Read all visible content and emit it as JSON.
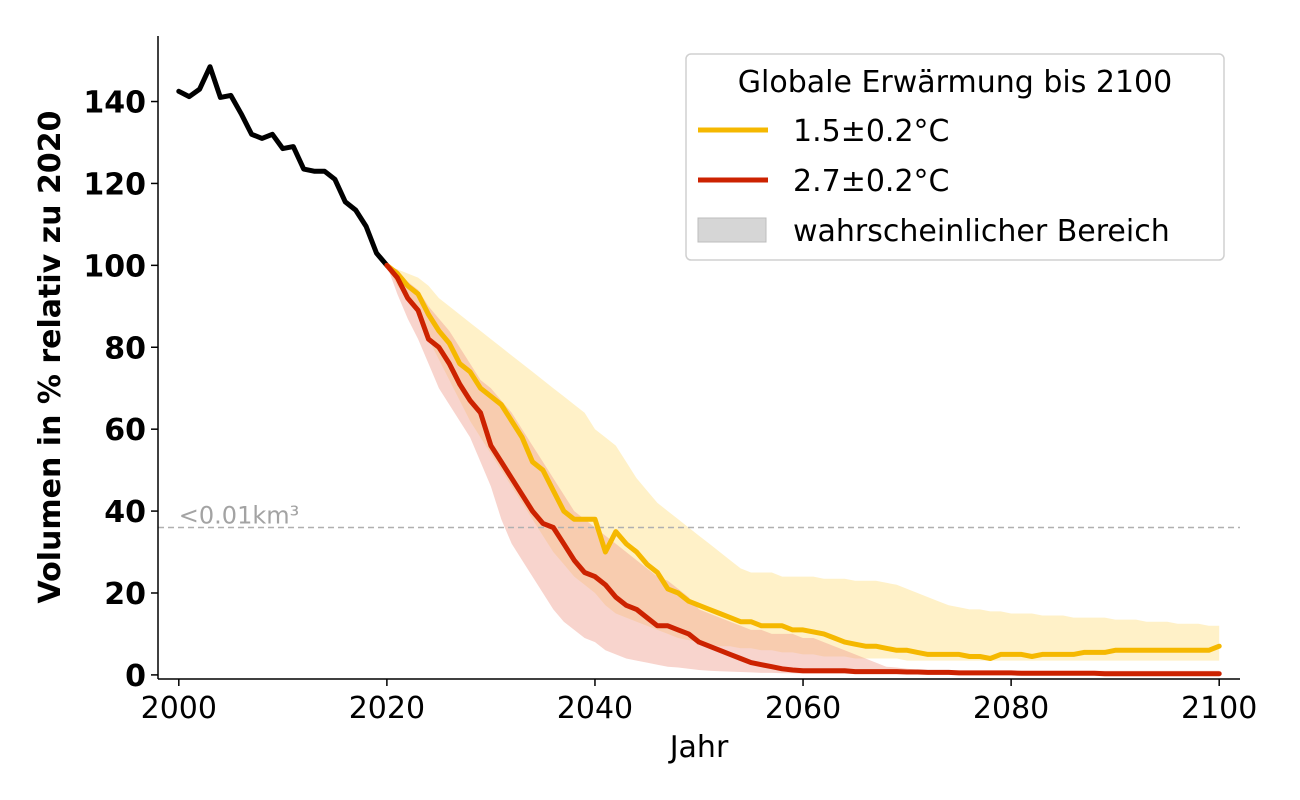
{
  "chart_data": {
    "type": "line",
    "xlabel": "Jahr",
    "ylabel": "Volumen in % relativ zu 2020",
    "xlim": [
      1998,
      2102
    ],
    "ylim": [
      -1,
      156
    ],
    "xticks": [
      2000,
      2020,
      2040,
      2060,
      2080,
      2100
    ],
    "yticks": [
      0,
      20,
      40,
      60,
      80,
      100,
      120,
      140
    ],
    "grid": false,
    "legend": {
      "title": "Globale Erwärmung bis 2100",
      "placement": "top-right",
      "entries": [
        "1.5±0.2°C",
        "2.7±0.2°C",
        "wahrscheinlicher Bereich"
      ]
    },
    "threshold": {
      "y": 36,
      "label": "<0.01km³",
      "color": "#b0b0b0"
    },
    "series": [
      {
        "name": "historical",
        "color": "#000000",
        "x": [
          2000,
          2001,
          2002,
          2003,
          2004,
          2005,
          2006,
          2007,
          2008,
          2009,
          2010,
          2011,
          2012,
          2013,
          2014,
          2015,
          2016,
          2017,
          2018,
          2019,
          2020
        ],
        "y": [
          142.5,
          141.2,
          143,
          148.5,
          141,
          141.5,
          137,
          132,
          131,
          132,
          128.5,
          129,
          123.5,
          123,
          123,
          121,
          115.5,
          113.5,
          109.5,
          103,
          100
        ]
      },
      {
        "name": "1.5±0.2°C",
        "color": "#f5b800",
        "band_color": "#ffebb0",
        "x": [
          2020,
          2021,
          2022,
          2023,
          2024,
          2025,
          2026,
          2027,
          2028,
          2029,
          2030,
          2031,
          2032,
          2033,
          2034,
          2035,
          2036,
          2037,
          2038,
          2039,
          2040,
          2041,
          2042,
          2043,
          2044,
          2045,
          2046,
          2047,
          2048,
          2049,
          2050,
          2051,
          2052,
          2053,
          2054,
          2055,
          2056,
          2057,
          2058,
          2059,
          2060,
          2061,
          2062,
          2063,
          2064,
          2065,
          2066,
          2067,
          2068,
          2069,
          2070,
          2071,
          2072,
          2073,
          2074,
          2075,
          2076,
          2077,
          2078,
          2079,
          2080,
          2081,
          2082,
          2083,
          2084,
          2085,
          2086,
          2087,
          2088,
          2089,
          2090,
          2091,
          2092,
          2093,
          2094,
          2095,
          2096,
          2097,
          2098,
          2099,
          2100
        ],
        "y": [
          100,
          98,
          95,
          93,
          88,
          84,
          81,
          76,
          74,
          70,
          68,
          66,
          62,
          58,
          52,
          50,
          45,
          40,
          38,
          38,
          38,
          30,
          35,
          32,
          30,
          27,
          25,
          21,
          20,
          18,
          17,
          16,
          15,
          14,
          13,
          13,
          12,
          12,
          12,
          11,
          11,
          10.5,
          10,
          9,
          8,
          7.5,
          7,
          7,
          6.5,
          6,
          6,
          5.5,
          5,
          5,
          5,
          5,
          4.5,
          4.5,
          4,
          5,
          5,
          5,
          4.5,
          5,
          5,
          5,
          5,
          5.5,
          5.5,
          5.5,
          6,
          6,
          6,
          6,
          6,
          6,
          6,
          6,
          6,
          6,
          7
        ],
        "lower": [
          100,
          95,
          92,
          88,
          82,
          77,
          72,
          67,
          62,
          58,
          54,
          50,
          46,
          42,
          38,
          34,
          30,
          27,
          24,
          22,
          20,
          17,
          15,
          14,
          13,
          12,
          11,
          10,
          9,
          8.5,
          8,
          7.5,
          7,
          7,
          6.5,
          6.5,
          6,
          6,
          5.5,
          5.5,
          5,
          5,
          4.5,
          4.5,
          4.5,
          4,
          4,
          4,
          4,
          4,
          3.5,
          3.5,
          3.5,
          3.5,
          3.5,
          3.5,
          3.5,
          3.5,
          3.5,
          3.5,
          3.5,
          3.5,
          3.5,
          3.5,
          3.5,
          3.5,
          3.5,
          3.5,
          3.5,
          3.5,
          3.5,
          3.5,
          3.5,
          3.5,
          3.5,
          3.5,
          3.5,
          3.5,
          3.5,
          3.5,
          3.5
        ],
        "upper": [
          100,
          99,
          98,
          97,
          95,
          92,
          90,
          88,
          86,
          84,
          82,
          80,
          78,
          76,
          74,
          72,
          70,
          68,
          66,
          64,
          60,
          58,
          56,
          52,
          48,
          45,
          42,
          40,
          38,
          36,
          34,
          32,
          30,
          28,
          26,
          25,
          25,
          25,
          24,
          24,
          24,
          24,
          23.5,
          23.5,
          23.5,
          23,
          23,
          23,
          22.5,
          22,
          21,
          20,
          19,
          18,
          17,
          16.5,
          16,
          16,
          15.5,
          15.5,
          15,
          15,
          15,
          14.5,
          14.5,
          14.5,
          14,
          14,
          14,
          14,
          13.5,
          13.5,
          13.5,
          13,
          13,
          13,
          12.5,
          12.5,
          12.5,
          12,
          12
        ]
      },
      {
        "name": "2.7±0.2°C",
        "color": "#cc2200",
        "band_color": "#f0a090",
        "x": [
          2020,
          2021,
          2022,
          2023,
          2024,
          2025,
          2026,
          2027,
          2028,
          2029,
          2030,
          2031,
          2032,
          2033,
          2034,
          2035,
          2036,
          2037,
          2038,
          2039,
          2040,
          2041,
          2042,
          2043,
          2044,
          2045,
          2046,
          2047,
          2048,
          2049,
          2050,
          2051,
          2052,
          2053,
          2054,
          2055,
          2056,
          2057,
          2058,
          2059,
          2060,
          2061,
          2062,
          2063,
          2064,
          2065,
          2066,
          2067,
          2068,
          2069,
          2070,
          2071,
          2072,
          2073,
          2074,
          2075,
          2076,
          2077,
          2078,
          2079,
          2080,
          2081,
          2082,
          2083,
          2084,
          2085,
          2086,
          2087,
          2088,
          2089,
          2090,
          2091,
          2092,
          2093,
          2094,
          2095,
          2096,
          2097,
          2098,
          2099,
          2100
        ],
        "y": [
          100,
          97,
          92,
          89,
          82,
          80,
          76,
          71,
          67,
          64,
          56,
          52,
          48,
          44,
          40,
          37,
          36,
          32,
          28,
          25,
          24,
          22,
          19,
          17,
          16,
          14,
          12,
          12,
          11,
          10,
          8,
          7,
          6,
          5,
          4,
          3,
          2.5,
          2,
          1.5,
          1.2,
          1,
          1,
          1,
          1,
          1,
          0.8,
          0.8,
          0.8,
          0.8,
          0.8,
          0.7,
          0.7,
          0.6,
          0.6,
          0.6,
          0.5,
          0.5,
          0.5,
          0.5,
          0.5,
          0.5,
          0.4,
          0.4,
          0.4,
          0.4,
          0.4,
          0.4,
          0.4,
          0.4,
          0.3,
          0.3,
          0.3,
          0.3,
          0.3,
          0.3,
          0.3,
          0.3,
          0.3,
          0.3,
          0.3,
          0.3
        ],
        "lower": [
          100,
          93,
          87,
          82,
          76,
          70,
          66,
          62,
          58,
          52,
          46,
          38,
          32,
          28,
          24,
          20,
          16,
          13,
          11,
          9,
          8,
          6,
          5,
          4,
          3.5,
          3,
          2.5,
          2,
          1.8,
          1.5,
          1.2,
          1,
          0.9,
          0.8,
          0.7,
          0.6,
          0.5,
          0.5,
          0.4,
          0.4,
          0.3,
          0.3,
          0.3,
          0.3,
          0.3,
          0.2,
          0.2,
          0.2,
          0.2,
          0.2,
          0.2,
          0.2,
          0.2,
          0.2,
          0.2,
          0.2,
          0.2,
          0.2,
          0.2,
          0.2,
          0.2,
          0.2,
          0.2,
          0.2,
          0.2,
          0.2,
          0.2,
          0.2,
          0.2,
          0.2,
          0.2,
          0.2,
          0.2,
          0.2,
          0.2,
          0.2,
          0.2,
          0.2,
          0.2,
          0.2,
          0.2
        ],
        "upper": [
          100,
          99,
          96,
          94,
          90,
          87,
          84,
          80,
          76,
          72,
          70,
          67,
          64,
          60,
          56,
          52,
          48,
          44,
          40,
          38,
          36,
          34,
          32,
          30,
          28,
          26,
          24,
          23,
          21,
          19,
          16,
          15,
          14,
          13,
          12,
          11,
          11,
          10,
          10,
          10,
          9,
          9,
          8,
          7,
          6,
          5,
          4,
          3,
          2,
          1.8,
          1.5,
          1.3,
          1.2,
          1.1,
          1,
          1,
          1,
          1,
          1,
          1,
          1,
          1,
          1,
          1,
          1,
          1,
          1,
          1,
          1,
          1,
          1,
          1,
          1,
          1,
          1,
          1,
          1,
          1,
          1,
          1,
          1
        ]
      }
    ]
  }
}
